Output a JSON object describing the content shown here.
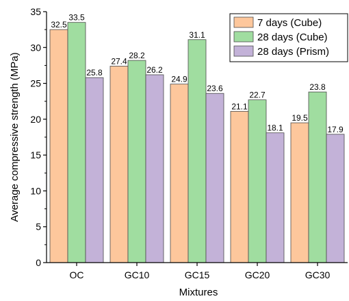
{
  "chart_data": {
    "type": "bar",
    "title": "",
    "xlabel": "Mixtures",
    "ylabel": "Average compressive strength (MPa)",
    "ylim": [
      0,
      35
    ],
    "yticks": [
      "0",
      "5",
      "10",
      "15",
      "20",
      "25",
      "30",
      "35"
    ],
    "categories": [
      "OC",
      "GC10",
      "GC15",
      "GC20",
      "GC30"
    ],
    "series": [
      {
        "name": "7 days (Cube)",
        "color": "#fdc79c",
        "values": [
          32.5,
          27.4,
          24.9,
          21.1,
          19.5
        ],
        "labels": [
          "32.5",
          "27.4",
          "24.9",
          "21.1",
          "19.5"
        ]
      },
      {
        "name": "28 days (Cube)",
        "color": "#a0dda0",
        "values": [
          33.5,
          28.2,
          31.1,
          22.7,
          23.8
        ],
        "labels": [
          "33.5",
          "28.2",
          "31.1",
          "22.7",
          "23.8"
        ]
      },
      {
        "name": "28 days (Prism)",
        "color": "#c3b2d8",
        "values": [
          25.8,
          26.2,
          23.6,
          18.1,
          17.9
        ],
        "labels": [
          "25.8",
          "26.2",
          "23.6",
          "18.1",
          "17.9"
        ]
      }
    ],
    "grid": false,
    "legend_position": "top-right"
  }
}
